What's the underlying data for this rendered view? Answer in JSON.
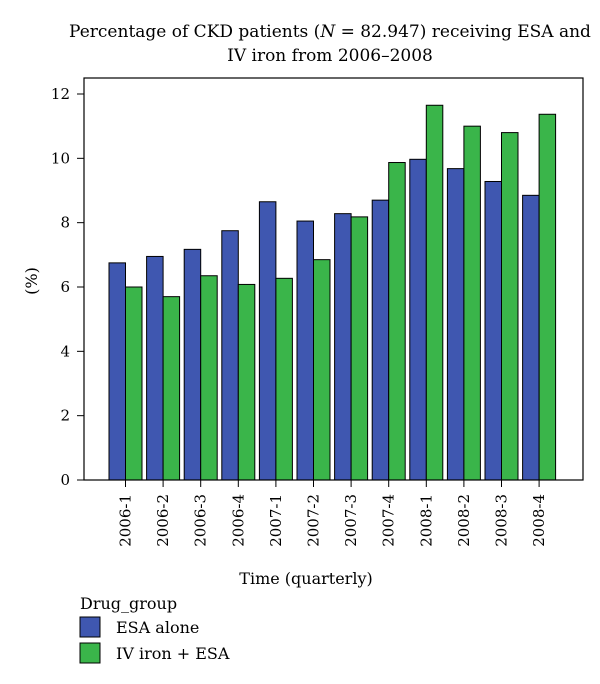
{
  "chart_data": {
    "type": "bar",
    "title_prefix": "Percentage of CKD patients (",
    "title_n_symbol": "N",
    "title_suffix": " = 82.947) receiving ESA and",
    "title_line2": "IV iron from 2006–2008",
    "xlabel": "Time (quarterly)",
    "ylabel": "(%)",
    "ylim": [
      0,
      12
    ],
    "yticks": [
      0,
      2,
      4,
      6,
      8,
      10,
      12
    ],
    "categories": [
      "2006-1",
      "2006-2",
      "2006-3",
      "2006-4",
      "2007-1",
      "2007-2",
      "2007-3",
      "2007-4",
      "2008-1",
      "2008-2",
      "2008-3",
      "2008-4"
    ],
    "series": [
      {
        "name": "ESA alone",
        "color": "#3f57b0",
        "values": [
          6.75,
          6.95,
          7.17,
          7.75,
          8.65,
          8.05,
          8.28,
          8.7,
          9.97,
          9.68,
          9.28,
          8.85
        ]
      },
      {
        "name": "IV iron + ESA",
        "color": "#3ab54a",
        "values": [
          6.0,
          5.7,
          6.35,
          6.08,
          6.27,
          6.85,
          8.18,
          9.87,
          11.65,
          11.0,
          10.8,
          11.37
        ]
      }
    ],
    "legend_title": "Drug_group",
    "legend_placement": "bottom-left",
    "grid": false
  }
}
